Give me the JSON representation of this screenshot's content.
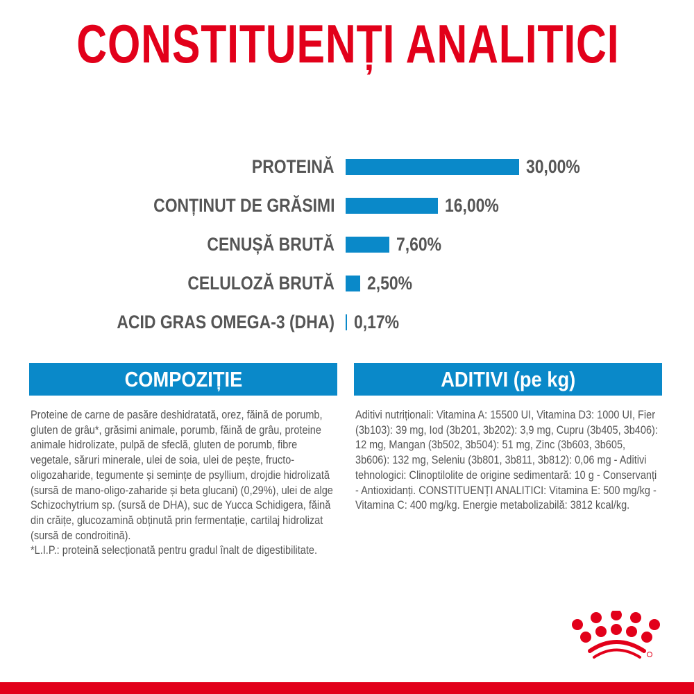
{
  "title": "CONSTITUENȚI ANALITICI",
  "chart_data": {
    "type": "bar",
    "orientation": "horizontal",
    "categories": [
      "PROTEINĂ",
      "CONȚINUT DE GRĂSIMI",
      "CENUȘĂ BRUTĂ",
      "CELULOZĂ BRUTĂ",
      "ACID GRAS OMEGA-3 (DHA)"
    ],
    "values": [
      30.0,
      16.0,
      7.6,
      2.5,
      0.17
    ],
    "value_labels": [
      "30,00%",
      "16,00%",
      "7,60%",
      "2,50%",
      "0,17%"
    ],
    "unit": "%",
    "bar_color": "#0a89c9",
    "grid": false
  },
  "composition": {
    "heading": "COMPOZIȚIE",
    "text": "Proteine de carne de pasăre deshidratată, orez, făină de porumb, gluten de grâu*, grăsimi animale, porumb, făină de grâu, proteine animale hidrolizate, pulpă de sfeclă, gluten de porumb, fibre vegetale, săruri minerale, ulei de soia, ulei de pește, fructo-oligozaharide, tegumente și semințe de psyllium, drojdie hidrolizată (sursă de mano-oligo-zaharide și beta glucani) (0,29%), ulei de alge Schizochytrium sp. (sursă de DHA), suc de Yucca Schidigera, făină din crăițe, glucozamină obținută prin fermentație, cartilaj hidrolizat (sursă de condroitină).",
    "footnote": "*L.I.P.: proteină selecționată pentru gradul înalt de digestibilitate."
  },
  "additives": {
    "heading": "ADITIVI (pe kg)",
    "text": "Aditivi nutriționali: Vitamina A: 15500 UI, Vitamina D3: 1000 UI, Fier (3b103): 39 mg, Iod (3b201, 3b202): 3,9 mg, Cupru (3b405, 3b406): 12 mg, Mangan (3b502, 3b504): 51 mg, Zinc (3b603, 3b605, 3b606): 132 mg, Seleniu (3b801, 3b811, 3b812): 0,06 mg - Aditivi tehnologici: Clinoptilolite de origine sedimentară: 10 g - Conservanți - Antioxidanți. CONSTITUENȚI ANALITICI: Vitamina E: 500 mg/kg - Vitamina C: 400 mg/kg. Energie metabolizabilă: 3812 kcal/kg."
  },
  "colors": {
    "brand_red": "#e2001a",
    "accent_blue": "#0a89c9"
  },
  "logo": {
    "icon": "royal-canin-crown-icon"
  }
}
